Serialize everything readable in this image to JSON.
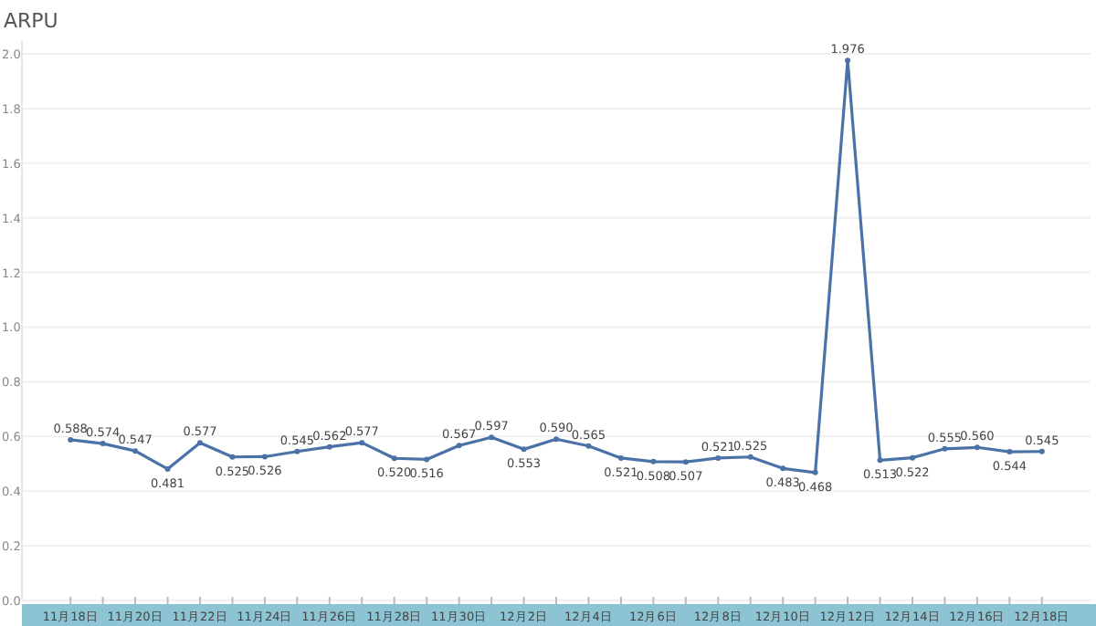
{
  "chart_data": {
    "type": "line",
    "title": "ARPU",
    "categories": [
      "11月18日",
      null,
      "11月20日",
      null,
      "11月22日",
      null,
      "11月24日",
      null,
      "11月26日",
      null,
      "11月28日",
      null,
      "11月30日",
      null,
      "12月2日",
      null,
      "12月4日",
      null,
      "12月6日",
      null,
      "12月8日",
      null,
      "12月10日",
      null,
      "12月12日",
      null,
      "12月14日",
      null,
      "12月16日",
      null,
      "12月18日"
    ],
    "series": [
      {
        "color": "#4a72a6",
        "values": [
          0.588,
          0.574,
          0.547,
          0.481,
          0.577,
          0.525,
          0.526,
          0.545,
          0.562,
          0.577,
          0.52,
          0.516,
          0.567,
          0.597,
          0.553,
          0.59,
          0.565,
          0.521,
          0.508,
          0.507,
          0.521,
          0.525,
          0.483,
          0.468,
          1.976,
          0.513,
          0.522,
          0.555,
          0.56,
          0.544,
          0.545
        ],
        "value_labels": [
          "0.588",
          "0.574",
          "0.547",
          "0.481",
          "0.577",
          "0.525",
          "0.526",
          "0.545",
          "0.562",
          "0.577",
          "0.520",
          "0.516",
          "0.567",
          "0.597",
          "0.553",
          "0.590",
          "0.565",
          "0.521",
          "0.508",
          "0.507",
          "0.521",
          "0.525",
          "0.483",
          "0.468",
          "1.976",
          "0.513",
          "0.522",
          "0.555",
          "0.560",
          "0.544",
          "0.545"
        ]
      }
    ],
    "ylim": [
      0,
      2.05
    ],
    "yticks": [
      {
        "value": 0,
        "label": "0.0"
      },
      {
        "value": 0.2,
        "label": "0.2"
      },
      {
        "value": 0.4,
        "label": "0.4"
      },
      {
        "value": 0.6,
        "label": "0.6"
      },
      {
        "value": 0.8,
        "label": "0.8"
      },
      {
        "value": 1.0,
        "label": "1.0"
      },
      {
        "value": 1.2,
        "label": "1.2"
      },
      {
        "value": 1.4,
        "label": "1.4"
      },
      {
        "value": 1.6,
        "label": "1.6"
      },
      {
        "value": 1.8,
        "label": "1.8"
      },
      {
        "value": 2.0,
        "label": "2.0"
      }
    ],
    "grid": "y",
    "marker": "circle",
    "line_style": "solid"
  }
}
